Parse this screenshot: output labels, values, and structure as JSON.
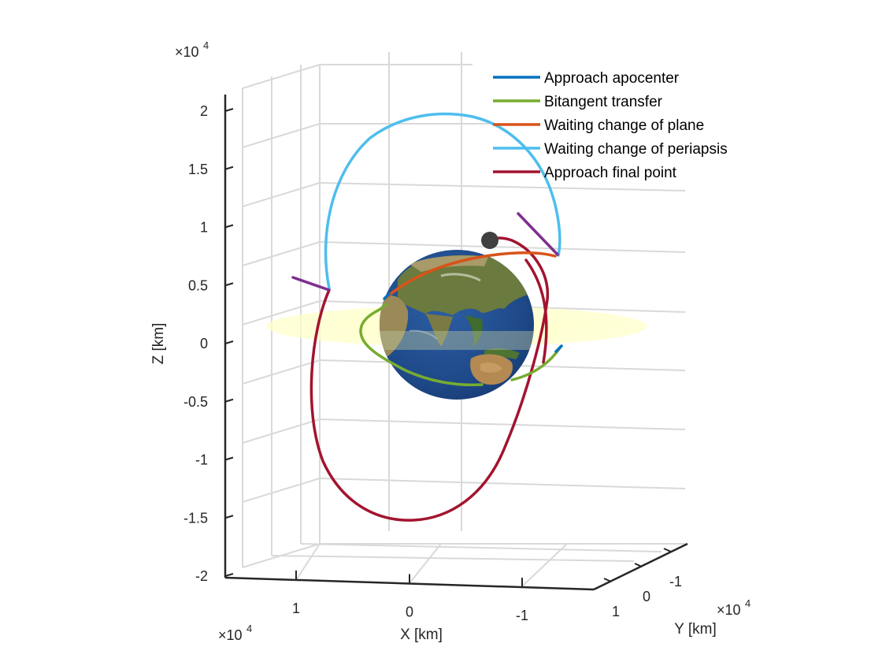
{
  "chart_data": {
    "type": "line",
    "subtype": "3d-orbit-plot",
    "xlabel": "X [km]",
    "ylabel": "Y [km]",
    "zlabel": "Z [km]",
    "exponent": {
      "base": "10",
      "power": "4"
    },
    "x_ticks": [
      "1",
      "0",
      "-1"
    ],
    "y_ticks": [
      "1",
      "0",
      "-1"
    ],
    "z_ticks": [
      "2",
      "1.5",
      "1",
      "0.5",
      "0",
      "-0.5",
      "-1",
      "-1.5",
      "-2"
    ],
    "z_tick_values": [
      2,
      1.5,
      1,
      0.5,
      0,
      -0.5,
      -1,
      -1.5,
      -2
    ],
    "zlim": [
      -2,
      2
    ],
    "z_scale": 10000,
    "grid": true,
    "legend_position": "top-right",
    "series": [
      {
        "name": "Approach apocenter",
        "color": "#0072BD"
      },
      {
        "name": "Bitangent transfer",
        "color": "#77AC30"
      },
      {
        "name": "Waiting change of plane",
        "color": "#D95319"
      },
      {
        "name": "Waiting change of periapsis",
        "color": "#4DBEEE"
      },
      {
        "name": "Approach final point",
        "color": "#A2142F"
      }
    ],
    "markers": {
      "maneuver_marker_color": "#7E2F8E",
      "final_point_color": "#404040"
    },
    "equatorial_plane_color": "#FFFFC8",
    "earth_texture": "earth-globe"
  }
}
